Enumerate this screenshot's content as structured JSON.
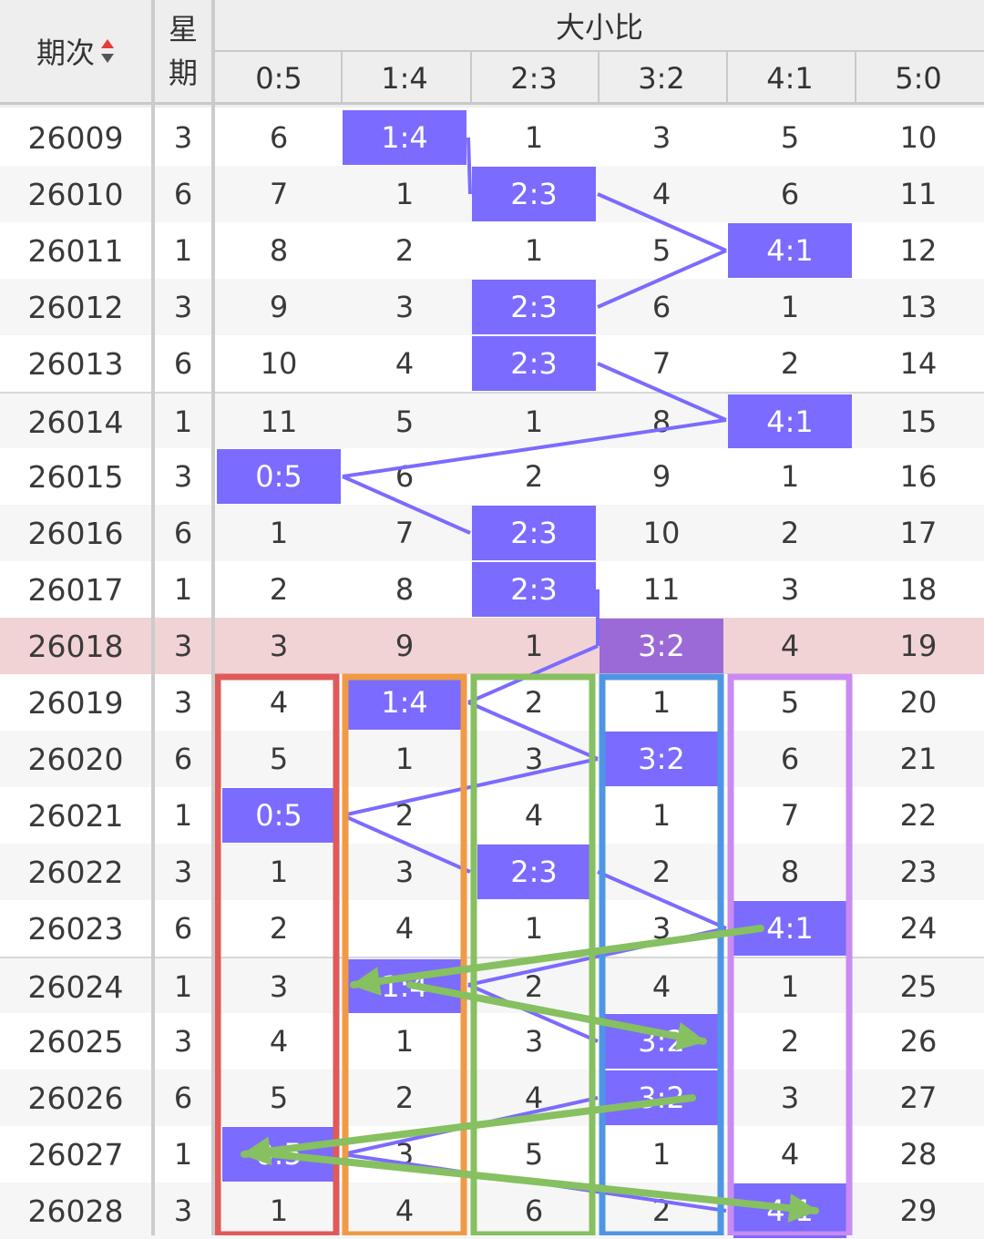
{
  "header": {
    "issue_label": "期次",
    "week_label_1": "星",
    "week_label_2": "期",
    "group_label": "大小比",
    "columns": [
      "0:5",
      "1:4",
      "2:3",
      "3:2",
      "4:1",
      "5:0"
    ]
  },
  "colors": {
    "hit": "#7b6bff",
    "hit_highlight_row": "#9b6ad6",
    "highlight_row": "#f2d3d5",
    "line": "#7b6bff",
    "arrow": "#86c060",
    "box_red": "#e05a5a",
    "box_orange": "#f09a45",
    "box_green": "#86c060",
    "box_blue": "#4f95e5",
    "box_purple": "#c98bf2"
  },
  "rows": [
    {
      "issue": "26009",
      "week": "3",
      "cells": [
        "6",
        "1:4",
        "1",
        "3",
        "5",
        "10"
      ],
      "hit": 1
    },
    {
      "issue": "26010",
      "week": "6",
      "cells": [
        "7",
        "1",
        "2:3",
        "4",
        "6",
        "11"
      ],
      "hit": 2
    },
    {
      "issue": "26011",
      "week": "1",
      "cells": [
        "8",
        "2",
        "1",
        "5",
        "4:1",
        "12"
      ],
      "hit": 4
    },
    {
      "issue": "26012",
      "week": "3",
      "cells": [
        "9",
        "3",
        "2:3",
        "6",
        "1",
        "13"
      ],
      "hit": 2
    },
    {
      "issue": "26013",
      "week": "6",
      "cells": [
        "10",
        "4",
        "2:3",
        "7",
        "2",
        "14"
      ],
      "hit": 2
    },
    {
      "issue": "26014",
      "week": "1",
      "cells": [
        "11",
        "5",
        "1",
        "8",
        "4:1",
        "15"
      ],
      "hit": 4
    },
    {
      "issue": "26015",
      "week": "3",
      "cells": [
        "0:5",
        "6",
        "2",
        "9",
        "1",
        "16"
      ],
      "hit": 0
    },
    {
      "issue": "26016",
      "week": "6",
      "cells": [
        "1",
        "7",
        "2:3",
        "10",
        "2",
        "17"
      ],
      "hit": 2
    },
    {
      "issue": "26017",
      "week": "1",
      "cells": [
        "2",
        "8",
        "2:3",
        "11",
        "3",
        "18"
      ],
      "hit": 2
    },
    {
      "issue": "26018",
      "week": "3",
      "cells": [
        "3",
        "9",
        "1",
        "3:2",
        "4",
        "19"
      ],
      "hit": 3,
      "highlight": true
    },
    {
      "issue": "26019",
      "week": "3",
      "cells": [
        "4",
        "1:4",
        "2",
        "1",
        "5",
        "20"
      ],
      "hit": 1
    },
    {
      "issue": "26020",
      "week": "6",
      "cells": [
        "5",
        "1",
        "3",
        "3:2",
        "6",
        "21"
      ],
      "hit": 3
    },
    {
      "issue": "26021",
      "week": "1",
      "cells": [
        "0:5",
        "2",
        "4",
        "1",
        "7",
        "22"
      ],
      "hit": 0
    },
    {
      "issue": "26022",
      "week": "3",
      "cells": [
        "1",
        "3",
        "2:3",
        "2",
        "8",
        "23"
      ],
      "hit": 2
    },
    {
      "issue": "26023",
      "week": "6",
      "cells": [
        "2",
        "4",
        "1",
        "3",
        "4:1",
        "24"
      ],
      "hit": 4
    },
    {
      "issue": "26024",
      "week": "1",
      "cells": [
        "3",
        "1:4",
        "2",
        "4",
        "1",
        "25"
      ],
      "hit": 1
    },
    {
      "issue": "26025",
      "week": "3",
      "cells": [
        "4",
        "1",
        "3",
        "3:2",
        "2",
        "26"
      ],
      "hit": 3
    },
    {
      "issue": "26026",
      "week": "6",
      "cells": [
        "5",
        "2",
        "4",
        "3:2",
        "3",
        "27"
      ],
      "hit": 3
    },
    {
      "issue": "26027",
      "week": "1",
      "cells": [
        "0:5",
        "3",
        "5",
        "1",
        "4",
        "28"
      ],
      "hit": 0
    },
    {
      "issue": "26028",
      "week": "3",
      "cells": [
        "1",
        "4",
        "6",
        "2",
        "4:1",
        "29"
      ],
      "hit": 4
    }
  ]
}
